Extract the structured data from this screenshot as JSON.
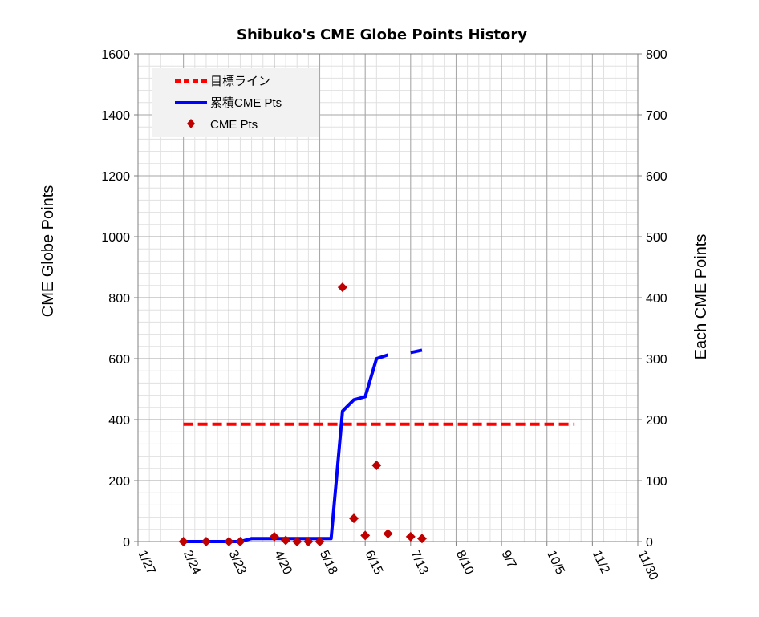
{
  "chart_data": {
    "type": "line",
    "title": "Shibuko's CME Globe Points History",
    "ylabel": "CME Globe Points",
    "y2label": "Each CME Points",
    "xlim": [
      "1/27",
      "11/30"
    ],
    "ylim": [
      0,
      1600
    ],
    "y2lim": [
      0,
      800
    ],
    "x_ticks": [
      "1/27",
      "2/24",
      "3/23",
      "4/20",
      "5/18",
      "6/15",
      "7/13",
      "8/10",
      "9/7",
      "10/5",
      "11/2",
      "11/30"
    ],
    "y_ticks": [
      "0",
      "200",
      "400",
      "600",
      "800",
      "1000",
      "1200",
      "1400",
      "1600"
    ],
    "y2_ticks": [
      "0",
      "100",
      "200",
      "300",
      "400",
      "500",
      "600",
      "700",
      "800"
    ],
    "grid": true,
    "legend_position": "top-left",
    "series": [
      {
        "name": "目標ライン",
        "style": "dashed",
        "color": "#ff0000",
        "axis": "left",
        "points": [
          {
            "x": "2/24",
            "y": 385
          },
          {
            "x": "10/22",
            "y": 385
          }
        ]
      },
      {
        "name": "累積CME Pts",
        "style": "solid",
        "color": "#0000ff",
        "axis": "left",
        "segments": [
          [
            {
              "x": "2/24",
              "y": 0
            },
            {
              "x": "3/9",
              "y": 0
            },
            {
              "x": "3/23",
              "y": 0
            },
            {
              "x": "3/30",
              "y": 0
            },
            {
              "x": "4/6",
              "y": 10
            },
            {
              "x": "4/20",
              "y": 10
            },
            {
              "x": "4/27",
              "y": 10
            },
            {
              "x": "5/4",
              "y": 10
            },
            {
              "x": "5/11",
              "y": 10
            },
            {
              "x": "5/18",
              "y": 10
            },
            {
              "x": "5/25",
              "y": 10
            },
            {
              "x": "6/1",
              "y": 428
            },
            {
              "x": "6/8",
              "y": 465
            },
            {
              "x": "6/15",
              "y": 475
            },
            {
              "x": "6/22",
              "y": 600
            },
            {
              "x": "6/29",
              "y": 612
            }
          ],
          [
            {
              "x": "7/13",
              "y": 620
            },
            {
              "x": "7/20",
              "y": 628
            }
          ]
        ]
      },
      {
        "name": "CME Pts",
        "style": "markers",
        "marker": "diamond",
        "color": "#c00000",
        "axis": "right",
        "points": [
          {
            "x": "2/24",
            "y": 0
          },
          {
            "x": "3/9",
            "y": 0
          },
          {
            "x": "3/23",
            "y": 0
          },
          {
            "x": "3/30",
            "y": 0
          },
          {
            "x": "4/20",
            "y": 8
          },
          {
            "x": "4/27",
            "y": 2
          },
          {
            "x": "5/4",
            "y": 0
          },
          {
            "x": "5/11",
            "y": 0
          },
          {
            "x": "5/18",
            "y": 0
          },
          {
            "x": "6/1",
            "y": 417
          },
          {
            "x": "6/8",
            "y": 38
          },
          {
            "x": "6/15",
            "y": 10
          },
          {
            "x": "6/22",
            "y": 125
          },
          {
            "x": "6/29",
            "y": 13
          },
          {
            "x": "7/13",
            "y": 8
          },
          {
            "x": "7/20",
            "y": 5
          }
        ]
      }
    ]
  }
}
